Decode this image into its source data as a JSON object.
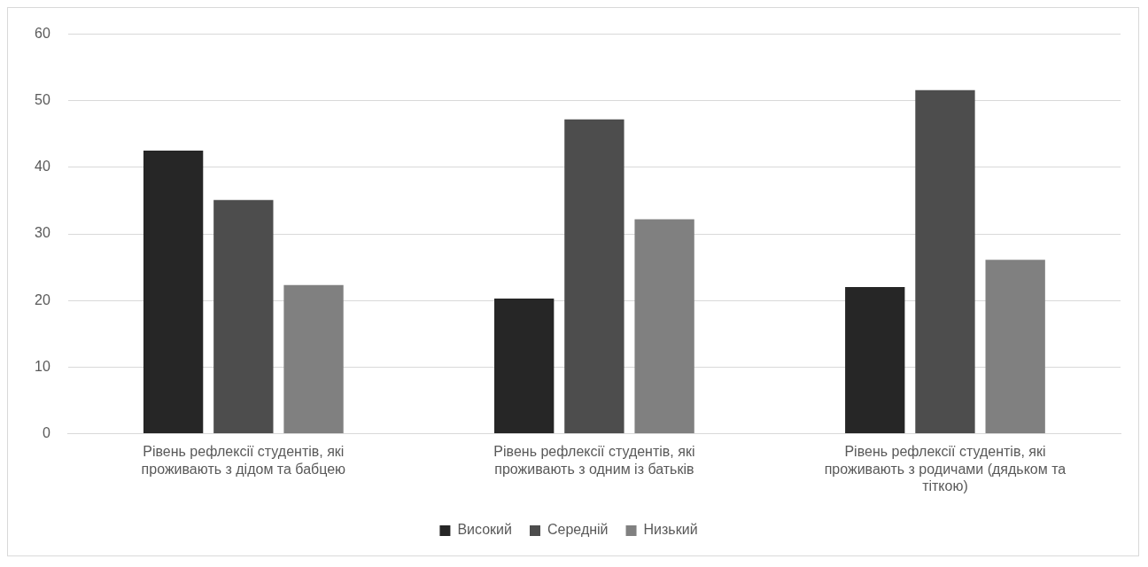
{
  "chart_data": {
    "type": "bar",
    "categories": [
      "Рівень рефлексії студентів, які проживають з дідом та бабцею",
      "Рівень рефлексії студентів, які проживають з одним із батьків",
      "Рівень рефлексії студентів, які проживають з родичами (дядьком та тіткою)"
    ],
    "series": [
      {
        "name": "Високий",
        "color": "#262626",
        "values": [
          42.5,
          20.3,
          22
        ]
      },
      {
        "name": "Середній",
        "color": "#4d4d4d",
        "values": [
          35.1,
          47.2,
          51.6
        ]
      },
      {
        "name": "Низький",
        "color": "#808080",
        "values": [
          22.3,
          32.2,
          26.1
        ]
      }
    ],
    "ylim": [
      0,
      60
    ],
    "yticks": [
      0,
      10,
      20,
      30,
      40,
      50,
      60
    ],
    "grid": "y",
    "legend": "bottom"
  }
}
